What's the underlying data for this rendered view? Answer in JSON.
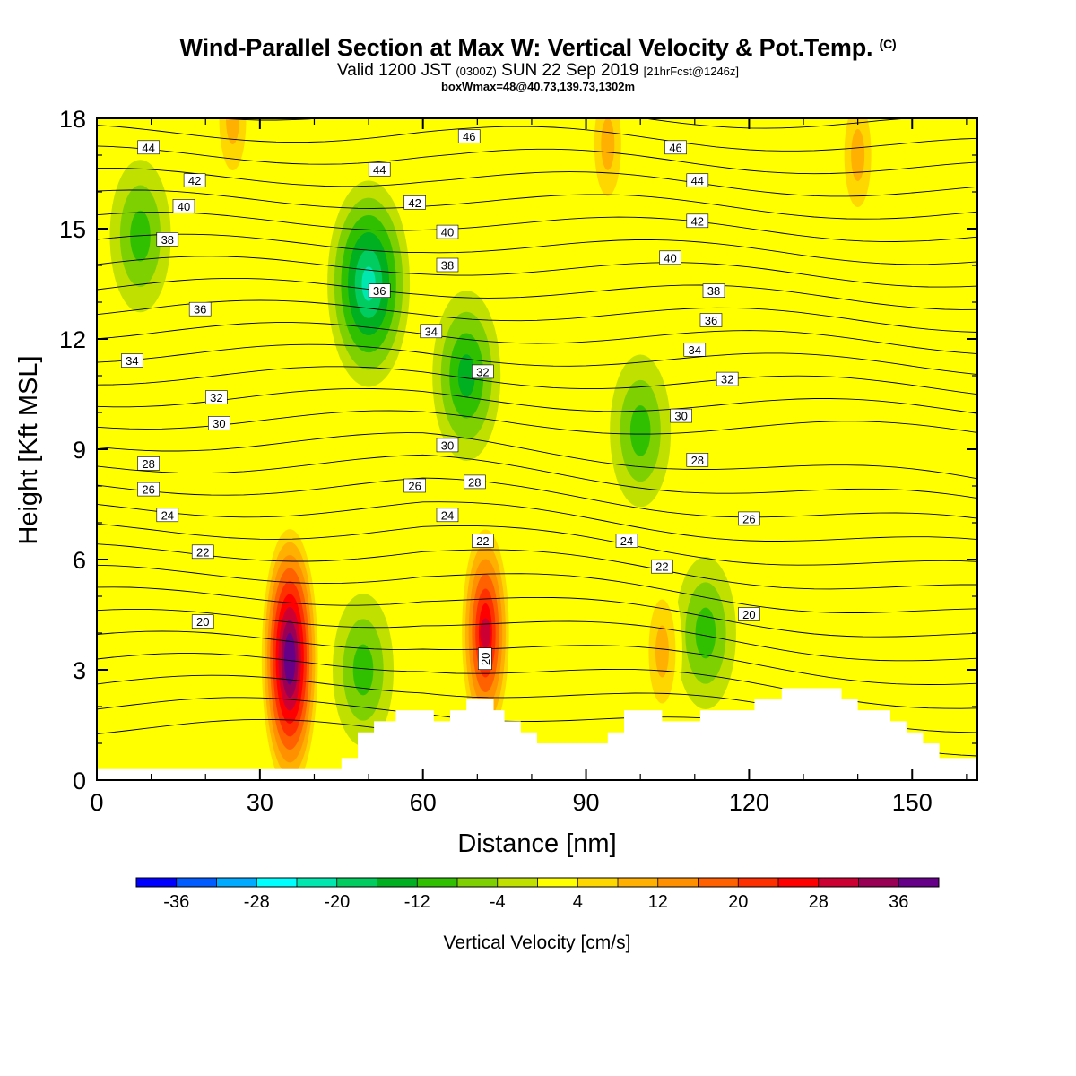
{
  "title": {
    "main": "Wind-Parallel Section at Max W: Vertical Velocity & Pot.Temp.",
    "copyright": "(C)",
    "valid_prefix": "Valid 1200 JST",
    "valid_utc": "(0300Z)",
    "valid_date": "SUN 22 Sep 2019",
    "forecast": "[21hrFcst@1246z]",
    "boxinfo": "boxWmax=48@40.73,139.73,1302m"
  },
  "chart_data": {
    "type": "heatmap",
    "xlabel": "Distance [nm]",
    "ylabel": "Height [Kft MSL]",
    "xlim": [
      0,
      162
    ],
    "ylim": [
      0,
      18
    ],
    "x_ticks": [
      "0",
      "30",
      "60",
      "90",
      "120",
      "150"
    ],
    "y_ticks": [
      "0",
      "3",
      "6",
      "9",
      "12",
      "15",
      "18"
    ],
    "colorbar": {
      "title": "Vertical Velocity [cm/s]",
      "tick_labels": [
        "-36",
        "-28",
        "-20",
        "-12",
        "-4",
        "4",
        "12",
        "20",
        "28",
        "36"
      ],
      "levels": [
        -40,
        -36,
        -32,
        -28,
        -24,
        -20,
        -16,
        -12,
        -8,
        -4,
        0,
        4,
        8,
        12,
        16,
        20,
        24,
        28,
        32,
        36,
        40
      ],
      "colors": [
        "#0000ff",
        "#005cff",
        "#00aaff",
        "#00ffff",
        "#00e8b0",
        "#00cc60",
        "#00b020",
        "#30c000",
        "#7ed000",
        "#c0e000",
        "#ffff00",
        "#ffd700",
        "#ffb000",
        "#ff9000",
        "#ff6000",
        "#ff3000",
        "#ff0000",
        "#cc0033",
        "#990055",
        "#660088"
      ]
    },
    "background_level_color": "#ffff00",
    "vertical_velocity_features": [
      {
        "x": 35.5,
        "y": 3.3,
        "value": 44
      },
      {
        "x": 71.5,
        "y": 4.0,
        "value": 32
      },
      {
        "x": 104,
        "y": 3.5,
        "value": 12
      },
      {
        "x": 50,
        "y": 13.5,
        "value": -22
      },
      {
        "x": 68,
        "y": 11.0,
        "value": -16
      },
      {
        "x": 49,
        "y": 3.0,
        "value": -10
      },
      {
        "x": 8,
        "y": 14.8,
        "value": -10
      },
      {
        "x": 100,
        "y": 9.5,
        "value": -10
      },
      {
        "x": 112,
        "y": 4.0,
        "value": -10
      },
      {
        "x": 94,
        "y": 17.3,
        "value": 10
      },
      {
        "x": 140,
        "y": 17.0,
        "value": 12
      },
      {
        "x": 25,
        "y": 18.0,
        "value": 10
      },
      {
        "x": 10,
        "y": 10.5,
        "value": 4
      },
      {
        "x": 30,
        "y": 7.0,
        "value": 4
      }
    ],
    "potential_temperature_contours": {
      "interval": 1,
      "range": [
        17,
        47
      ],
      "labels": [
        {
          "text": "44",
          "x": 9.5,
          "y": 17.2
        },
        {
          "text": "42",
          "x": 18,
          "y": 16.3
        },
        {
          "text": "40",
          "x": 16,
          "y": 15.6
        },
        {
          "text": "38",
          "x": 13,
          "y": 14.7
        },
        {
          "text": "36",
          "x": 19,
          "y": 12.8
        },
        {
          "text": "34",
          "x": 6.5,
          "y": 11.4
        },
        {
          "text": "32",
          "x": 22,
          "y": 10.4
        },
        {
          "text": "30",
          "x": 22.5,
          "y": 9.7
        },
        {
          "text": "28",
          "x": 9.5,
          "y": 8.6
        },
        {
          "text": "26",
          "x": 9.5,
          "y": 7.9
        },
        {
          "text": "24",
          "x": 13,
          "y": 7.2
        },
        {
          "text": "22",
          "x": 19.5,
          "y": 6.2
        },
        {
          "text": "20",
          "x": 19.5,
          "y": 4.3
        },
        {
          "text": "46",
          "x": 68.5,
          "y": 17.5
        },
        {
          "text": "44",
          "x": 52,
          "y": 16.6
        },
        {
          "text": "42",
          "x": 58.5,
          "y": 15.7
        },
        {
          "text": "40",
          "x": 64.5,
          "y": 14.9
        },
        {
          "text": "38",
          "x": 64.5,
          "y": 14.0
        },
        {
          "text": "36",
          "x": 52,
          "y": 13.3
        },
        {
          "text": "34",
          "x": 61.5,
          "y": 12.2
        },
        {
          "text": "32",
          "x": 71,
          "y": 11.1
        },
        {
          "text": "30",
          "x": 64.5,
          "y": 9.1
        },
        {
          "text": "28",
          "x": 69.5,
          "y": 8.1
        },
        {
          "text": "26",
          "x": 58.5,
          "y": 8.0
        },
        {
          "text": "24",
          "x": 64.5,
          "y": 7.2
        },
        {
          "text": "22",
          "x": 71,
          "y": 6.5
        },
        {
          "text": "20",
          "x": 71.5,
          "y": 3.3,
          "rotated": true
        },
        {
          "text": "46",
          "x": 106.5,
          "y": 17.2
        },
        {
          "text": "44",
          "x": 110.5,
          "y": 16.3
        },
        {
          "text": "42",
          "x": 110.5,
          "y": 15.2
        },
        {
          "text": "40",
          "x": 105.5,
          "y": 14.2
        },
        {
          "text": "38",
          "x": 113.5,
          "y": 13.3
        },
        {
          "text": "36",
          "x": 113,
          "y": 12.5
        },
        {
          "text": "34",
          "x": 110,
          "y": 11.7
        },
        {
          "text": "32",
          "x": 116,
          "y": 10.9
        },
        {
          "text": "30",
          "x": 107.5,
          "y": 9.9
        },
        {
          "text": "28",
          "x": 110.5,
          "y": 8.7
        },
        {
          "text": "26",
          "x": 120,
          "y": 7.1
        },
        {
          "text": "24",
          "x": 97.5,
          "y": 6.5
        },
        {
          "text": "22",
          "x": 104,
          "y": 5.8
        },
        {
          "text": "20",
          "x": 120,
          "y": 4.5
        }
      ]
    },
    "terrain": {
      "x": [
        0,
        45,
        45,
        48,
        48,
        51,
        51,
        55,
        55,
        62,
        62,
        65,
        65,
        68,
        68,
        73,
        73,
        75,
        75,
        78,
        78,
        81,
        81,
        84,
        84,
        94,
        94,
        97,
        97,
        104,
        104,
        111,
        111,
        121,
        121,
        126,
        126,
        137,
        137,
        140,
        140,
        146,
        146,
        149,
        149,
        152,
        152,
        155,
        155,
        162,
        162
      ],
      "height": [
        0.3,
        0.3,
        0.6,
        0.6,
        1.3,
        1.3,
        1.6,
        1.6,
        1.9,
        1.9,
        1.6,
        1.6,
        1.9,
        1.9,
        2.2,
        2.2,
        1.9,
        1.9,
        1.6,
        1.6,
        1.3,
        1.3,
        1.0,
        1.0,
        1.0,
        1.0,
        1.3,
        1.3,
        1.9,
        1.9,
        1.6,
        1.6,
        1.9,
        1.9,
        2.2,
        2.2,
        2.5,
        2.5,
        2.2,
        2.2,
        1.9,
        1.9,
        1.6,
        1.6,
        1.3,
        1.3,
        1.0,
        1.0,
        0.6,
        0.6,
        0.6
      ]
    }
  }
}
